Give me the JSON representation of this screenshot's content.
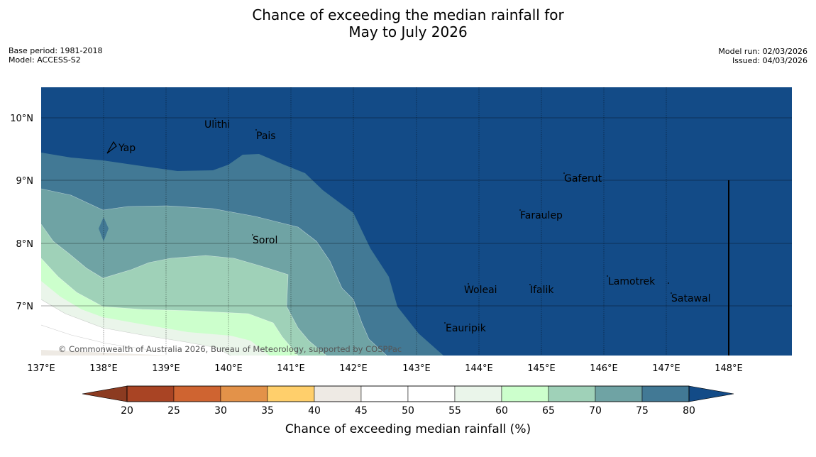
{
  "title": {
    "line1": "Chance of exceeding the median rainfall for",
    "line2": "May to July 2026"
  },
  "meta_left": {
    "base_period": "Base period: 1981-2018",
    "model": "Model: ACCESS-S2"
  },
  "meta_right": {
    "model_run": "Model run: 02/03/2026",
    "issued": "Issued: 04/03/2026"
  },
  "map": {
    "lon_labels": [
      "137°E",
      "138°E",
      "139°E",
      "140°E",
      "141°E",
      "142°E",
      "143°E",
      "144°E",
      "145°E",
      "146°E",
      "147°E",
      "148°E"
    ],
    "lat_labels": [
      "10°N",
      "9°N",
      "8°N",
      "7°N"
    ],
    "places": [
      "Ulithi",
      "Pais",
      "Yap",
      "Gaferut",
      "Faraulep",
      "Sorol",
      "Lamotrek",
      "Woleai",
      "Ifalik",
      "Satawal",
      "Eauripik"
    ],
    "copyright": "© Commonwealth of Australia 2026, Bureau of Meteorology, supported by COSPPac"
  },
  "legend": {
    "ticks": [
      "20",
      "25",
      "30",
      "35",
      "40",
      "45",
      "50",
      "55",
      "60",
      "65",
      "70",
      "75",
      "80"
    ],
    "label": "Chance of exceeding median rainfall (%)",
    "colors": [
      "#a94424",
      "#cf6431",
      "#e39249",
      "#ffcf6b",
      "#eeeae4",
      "#ffffff",
      "#ffffff",
      "#eaf5ea",
      "#ccffcc",
      "#9fd1b8",
      "#6fa3a4",
      "#427995"
    ],
    "under_color": "#8c3b21",
    "over_color": "#134b87"
  },
  "colors": {
    "ocean_max": "#134b87"
  }
}
